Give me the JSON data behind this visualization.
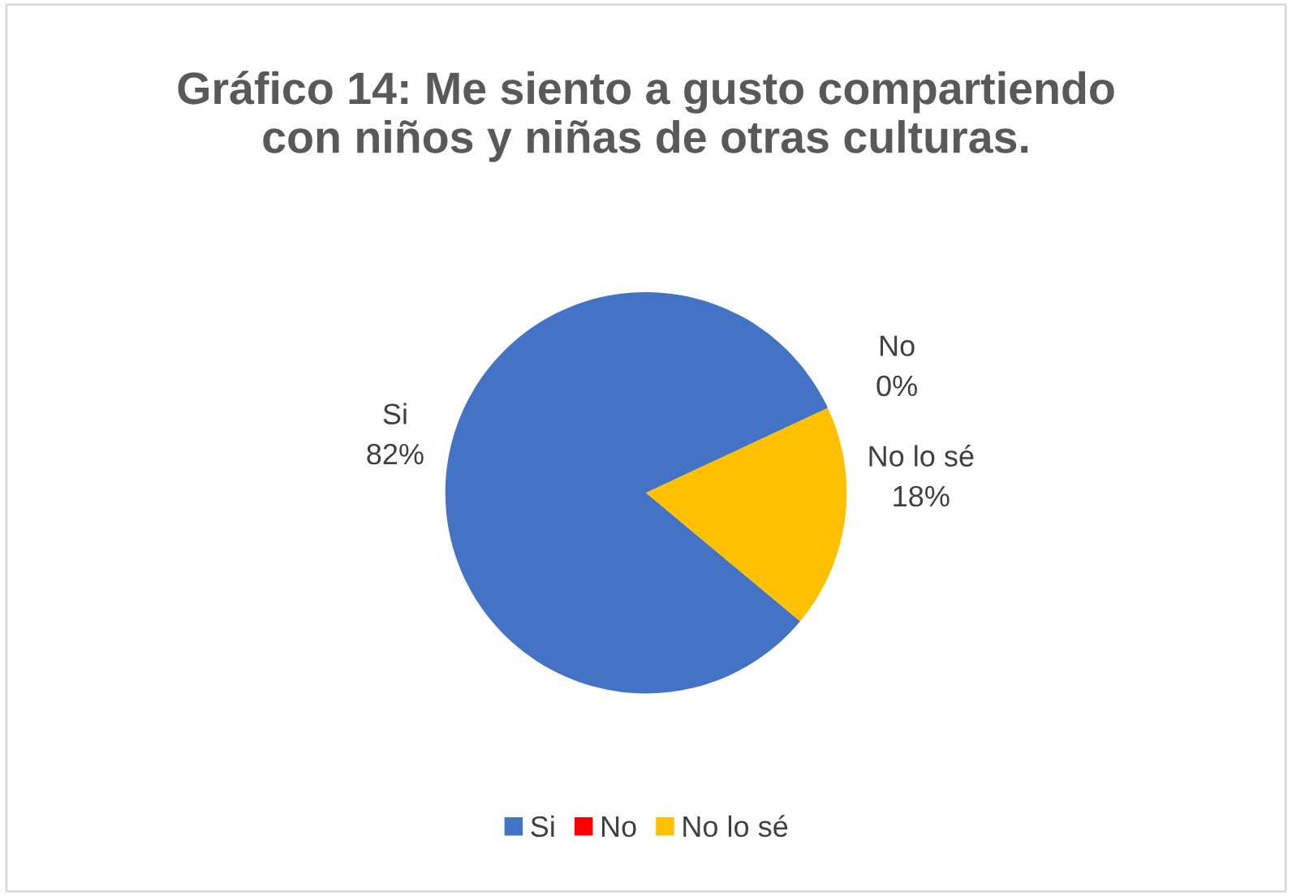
{
  "chart_data": {
    "type": "pie",
    "title": "Gráfico 14: Me siento a gusto compartiendo con niños y niñas de otras culturas.",
    "categories": [
      "Si",
      "No",
      "No lo sé"
    ],
    "values": [
      82,
      0,
      18
    ],
    "colors": [
      "#4472c4",
      "#ff0000",
      "#ffc000"
    ],
    "value_labels": [
      "82%",
      "0%",
      "18%"
    ],
    "legend": "bottom"
  }
}
